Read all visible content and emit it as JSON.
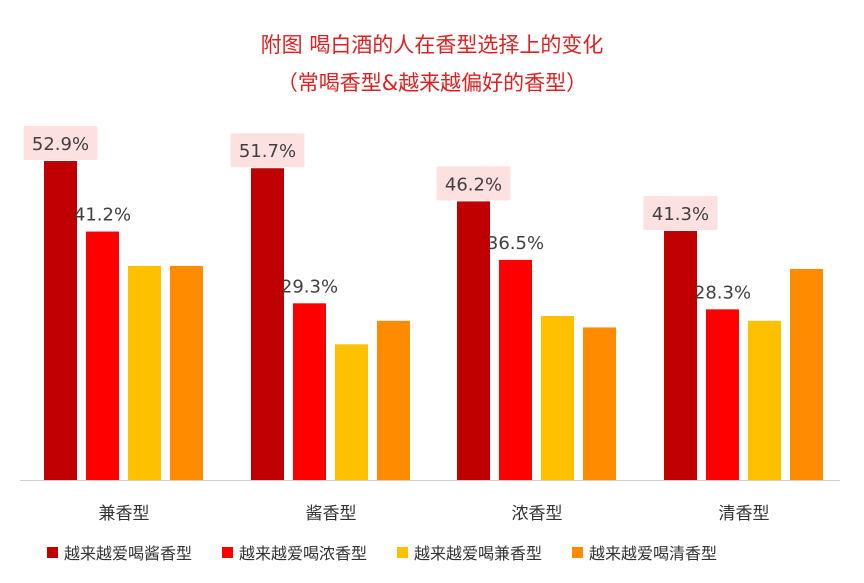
{
  "chart_data": {
    "type": "bar",
    "title": "附图 喝白酒的人在香型选择上的变化",
    "subtitle": "（常喝香型&越来越偏好的香型）",
    "categories": [
      "兼香型",
      "酱香型",
      "浓香型",
      "清香型"
    ],
    "series": [
      {
        "name": "越来越爱喝酱香型",
        "color": "#c00000",
        "values": [
          52.9,
          51.7,
          46.2,
          41.3
        ]
      },
      {
        "name": "越来越爱喝浓香型",
        "color": "#ff0000",
        "values": [
          41.2,
          29.3,
          36.5,
          28.3
        ]
      },
      {
        "name": "越来越爱喝兼香型",
        "color": "#ffc000",
        "values": [
          35.5,
          22.5,
          27.2,
          26.4
        ]
      },
      {
        "name": "越来越爱喝清香型",
        "color": "#ff8c00",
        "values": [
          35.5,
          26.4,
          25.3,
          35.0
        ]
      }
    ],
    "data_labels": [
      [
        "52.9%",
        "41.2%",
        "",
        ""
      ],
      [
        "51.7%",
        "29.3%",
        "",
        ""
      ],
      [
        "46.2%",
        "36.5%",
        "",
        ""
      ],
      [
        "41.3%",
        "28.3%",
        "",
        ""
      ]
    ],
    "highlight_color": "#fde0e0",
    "ylim": [
      0,
      56
    ],
    "grid": false,
    "legend_position": "bottom"
  }
}
